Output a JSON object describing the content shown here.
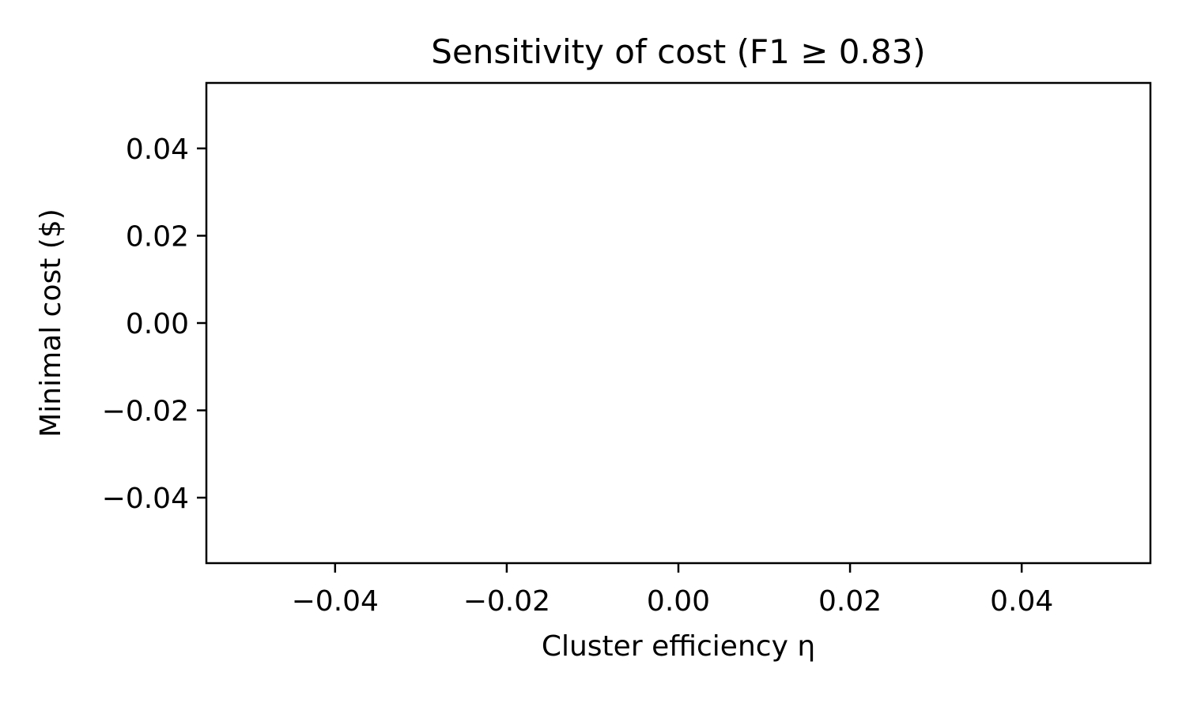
{
  "chart_data": {
    "type": "line",
    "title": "Sensitivity of cost (F1 ≥ 0.83)",
    "xlabel": "Cluster efficiency η",
    "ylabel": "Minimal cost ($)",
    "xlim": [
      -0.055,
      0.055
    ],
    "ylim": [
      -0.055,
      0.055
    ],
    "xticks": [
      -0.04,
      -0.02,
      0.0,
      0.02,
      0.04
    ],
    "yticks": [
      -0.04,
      -0.02,
      0.0,
      0.02,
      0.04
    ],
    "xtick_labels": [
      "−0.04",
      "−0.02",
      "0.00",
      "0.02",
      "0.04"
    ],
    "ytick_labels": [
      "−0.04",
      "−0.02",
      "0.00",
      "0.02",
      "0.04"
    ],
    "grid": false,
    "series": [],
    "colors": {
      "axes": "#000000",
      "background": "#ffffff"
    }
  }
}
